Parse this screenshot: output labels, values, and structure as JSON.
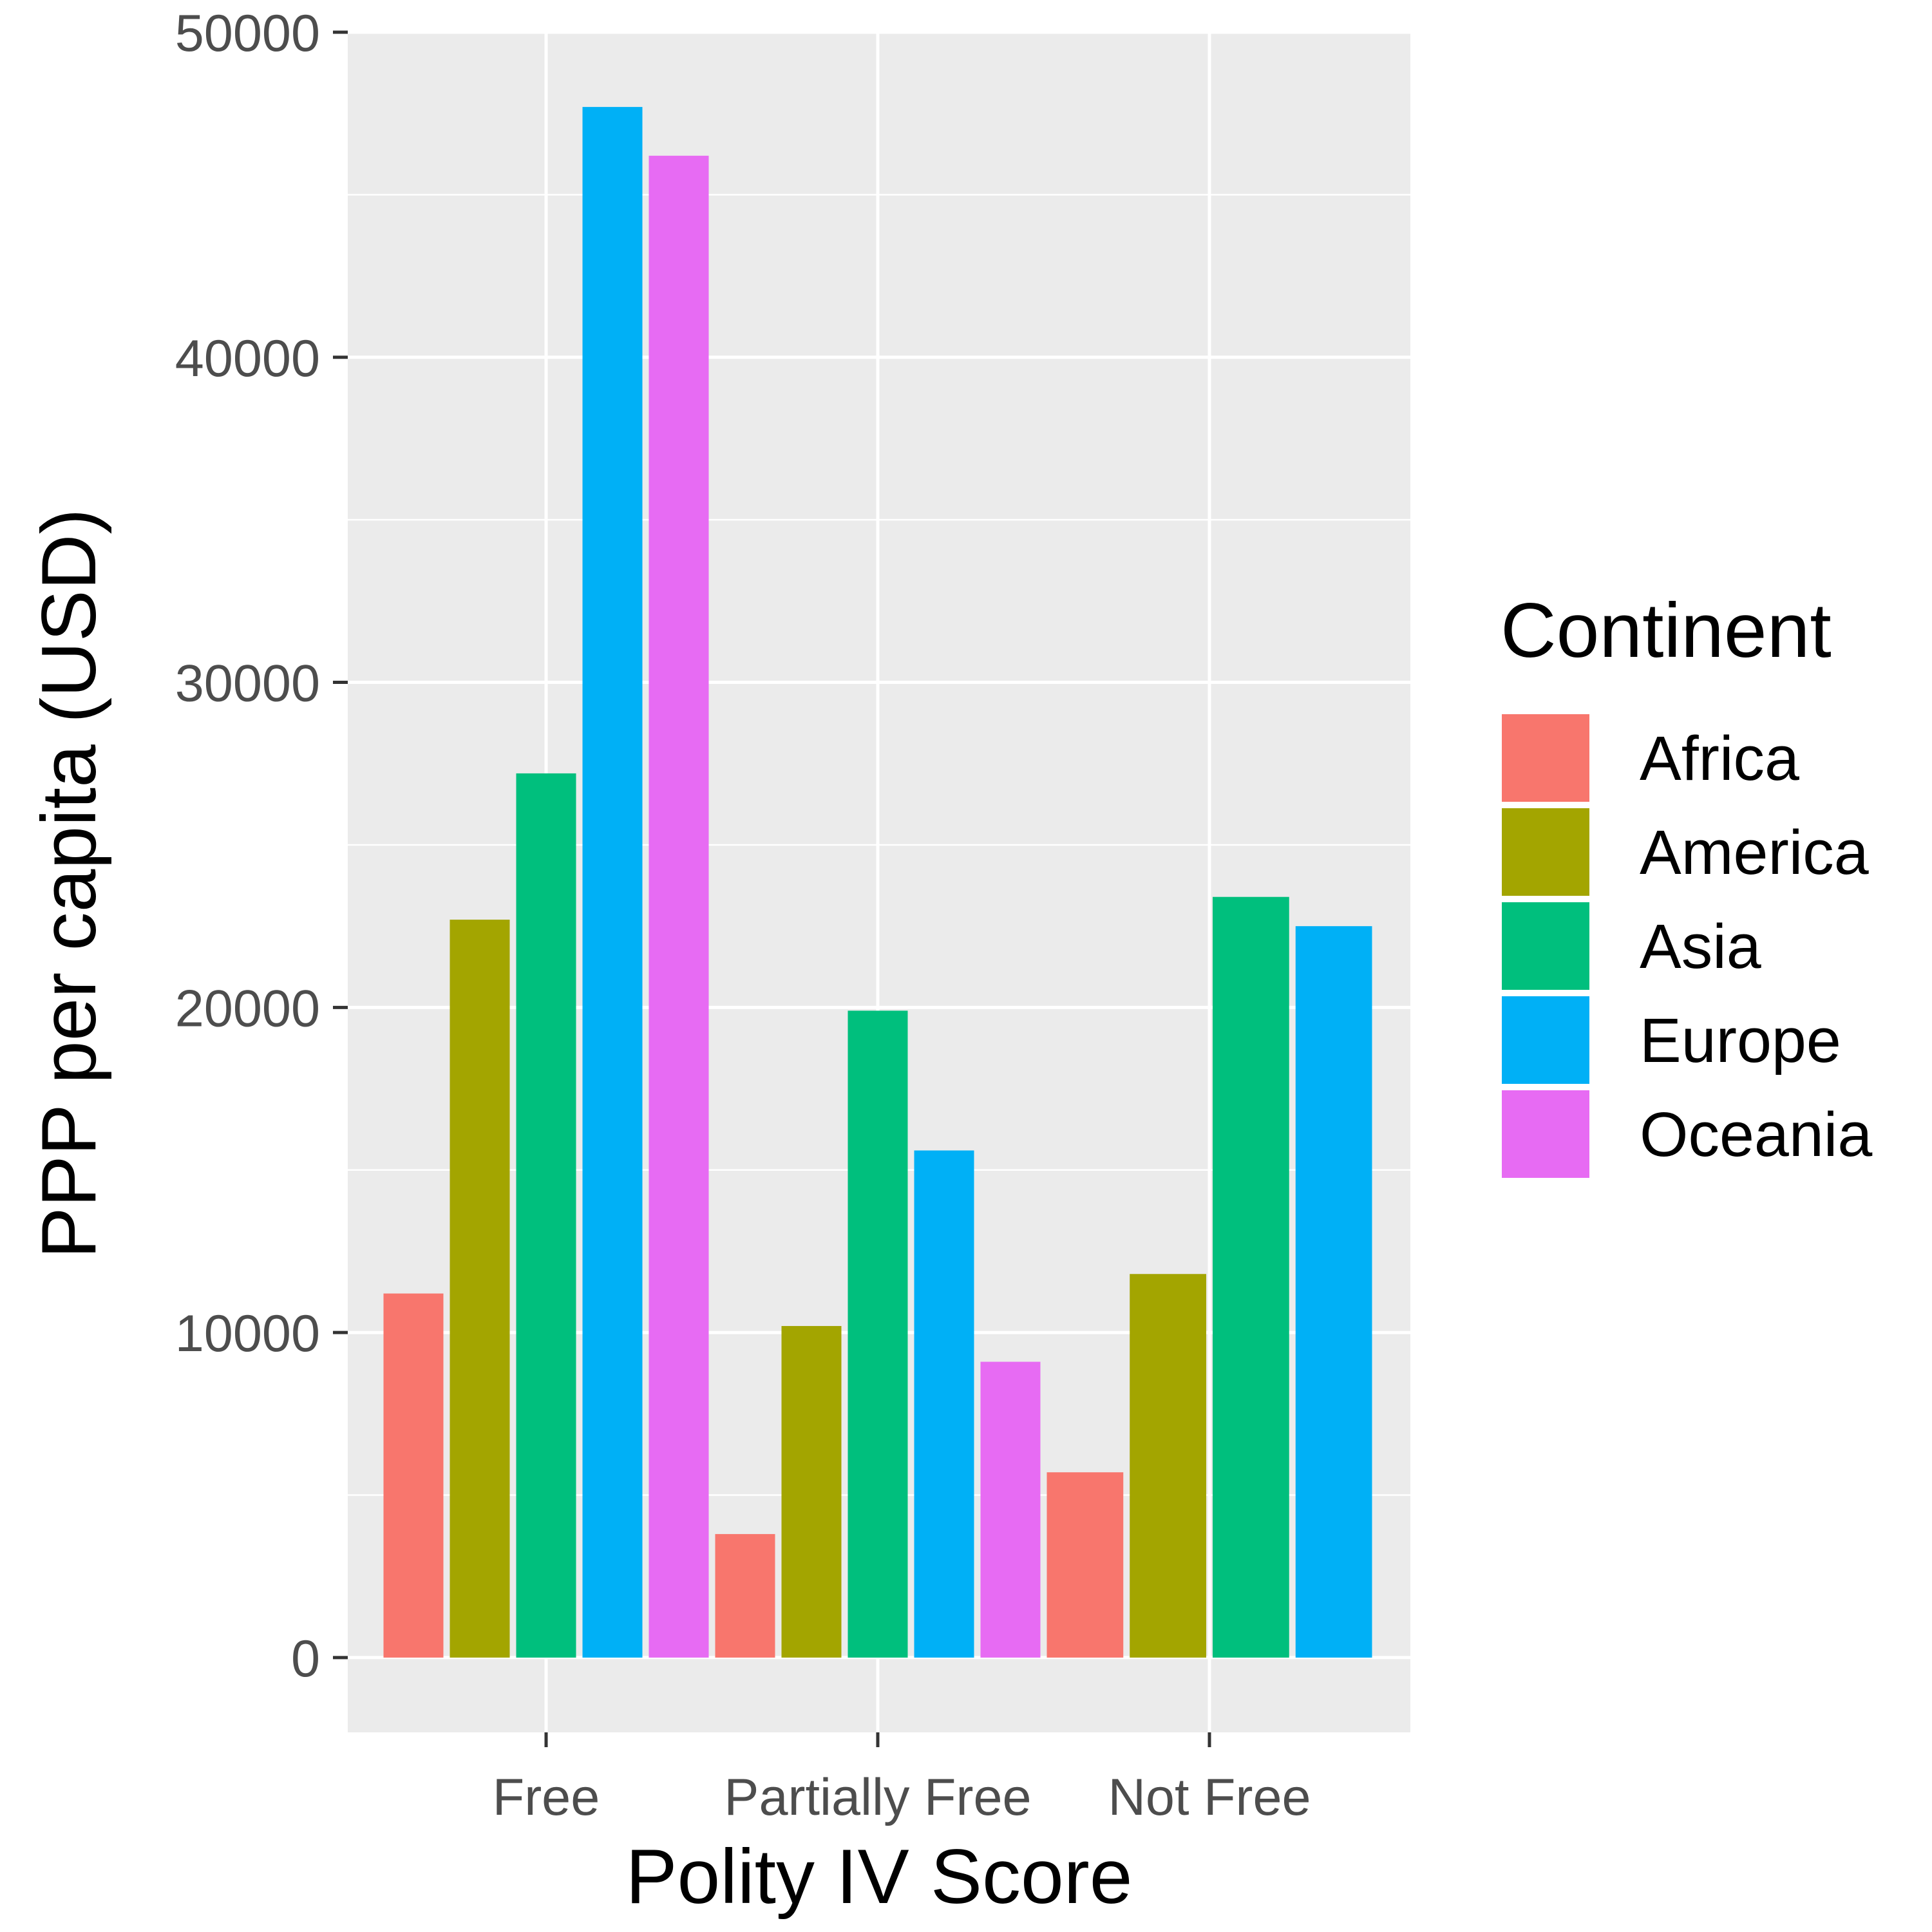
{
  "chart_data": {
    "type": "bar",
    "xlabel": "Polity IV Score",
    "ylabel": "PPP per capita (USD)",
    "ylim": [
      -2300,
      50000
    ],
    "yticks": [
      0,
      10000,
      20000,
      30000,
      40000,
      50000
    ],
    "ytick_labels": [
      "0",
      "10000",
      "20000",
      "30000",
      "40000",
      "50000"
    ],
    "grid": true,
    "legend": {
      "title": "Continent",
      "position": "right",
      "entries": [
        "Africa",
        "America",
        "Asia",
        "Europe",
        "Oceania"
      ]
    },
    "colors": {
      "Africa": "#F8766D",
      "America": "#A3A500",
      "Asia": "#00BF7D",
      "Europe": "#00B0F6",
      "Oceania": "#E76BF3"
    },
    "categories": [
      "Free",
      "Partially Free",
      "Not Free"
    ],
    "groups": [
      {
        "category": "Free",
        "bars": [
          {
            "series": "Africa",
            "value": 11200
          },
          {
            "series": "America",
            "value": 22700
          },
          {
            "series": "Asia",
            "value": 27200
          },
          {
            "series": "Europe",
            "value": 47700
          },
          {
            "series": "Oceania",
            "value": 46200
          }
        ]
      },
      {
        "category": "Partially Free",
        "bars": [
          {
            "series": "Africa",
            "value": 3800
          },
          {
            "series": "America",
            "value": 10200
          },
          {
            "series": "Asia",
            "value": 19900
          },
          {
            "series": "Europe",
            "value": 15600
          },
          {
            "series": "Oceania",
            "value": 9100
          }
        ]
      },
      {
        "category": "Not Free",
        "bars": [
          {
            "series": "Africa",
            "value": 5700
          },
          {
            "series": "America",
            "value": 11800
          },
          {
            "series": "Asia",
            "value": 23400
          },
          {
            "series": "Europe",
            "value": 22500
          }
        ]
      }
    ]
  }
}
